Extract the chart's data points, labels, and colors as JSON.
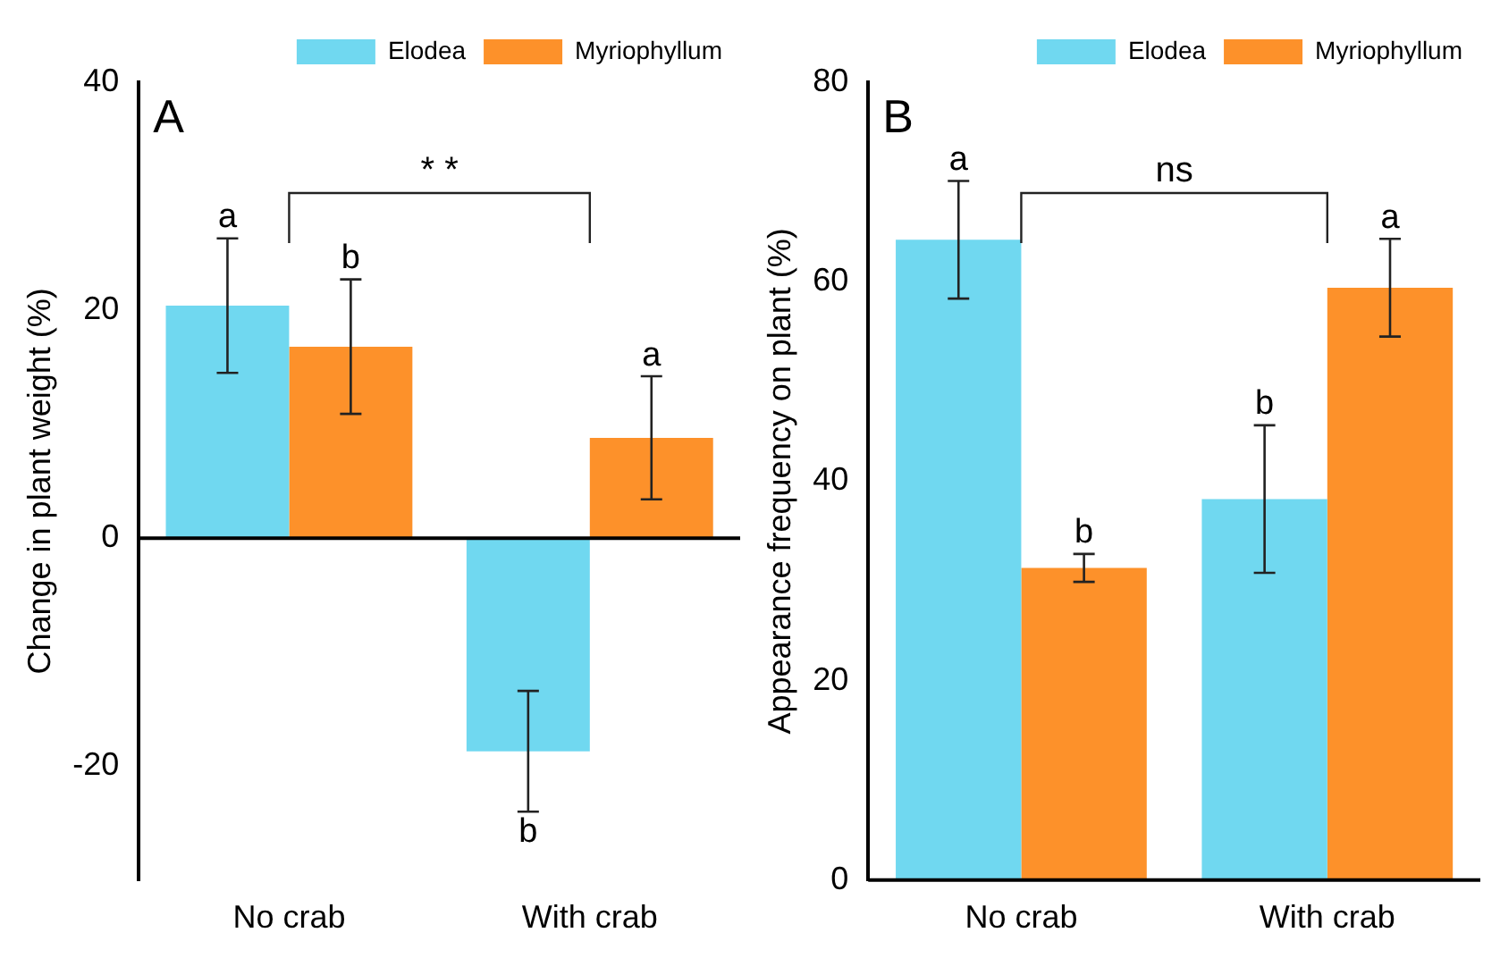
{
  "chart_data": [
    {
      "type": "bar",
      "title": "A",
      "ylabel": "Change in plant weight (%)",
      "categories": [
        "No crab",
        "With crab"
      ],
      "ylim": [
        -30,
        40
      ],
      "yticks": [
        -20,
        0,
        20,
        40
      ],
      "legend": "top right",
      "annotations": [
        "* *"
      ],
      "series": [
        {
          "name": "Elodea",
          "color": "#70d8f0",
          "values": [
            20.4,
            -18.7
          ],
          "errors": [
            5.9,
            5.3
          ],
          "value_labels": [
            "a",
            "b"
          ]
        },
        {
          "name": "Myriophyllum",
          "color": "#fd912a",
          "values": [
            16.8,
            8.8
          ],
          "errors": [
            5.9,
            5.4
          ],
          "value_labels": [
            "b",
            "a"
          ]
        }
      ]
    },
    {
      "type": "bar",
      "title": "B",
      "ylabel": "Appearance frequency on plant (%)",
      "categories": [
        "No crab",
        "With crab"
      ],
      "ylim": [
        0,
        80
      ],
      "yticks": [
        0,
        20,
        40,
        60,
        80
      ],
      "legend": "top right",
      "annotations": [
        "ns"
      ],
      "series": [
        {
          "name": "Elodea",
          "color": "#70d8f0",
          "values": [
            64.2,
            38.2
          ],
          "errors": [
            5.9,
            7.4
          ],
          "value_labels": [
            "a",
            "b"
          ]
        },
        {
          "name": "Myriophyllum",
          "color": "#fd912a",
          "values": [
            31.3,
            59.4
          ],
          "errors": [
            1.4,
            4.9
          ],
          "value_labels": [
            "b",
            "a"
          ]
        }
      ]
    }
  ]
}
